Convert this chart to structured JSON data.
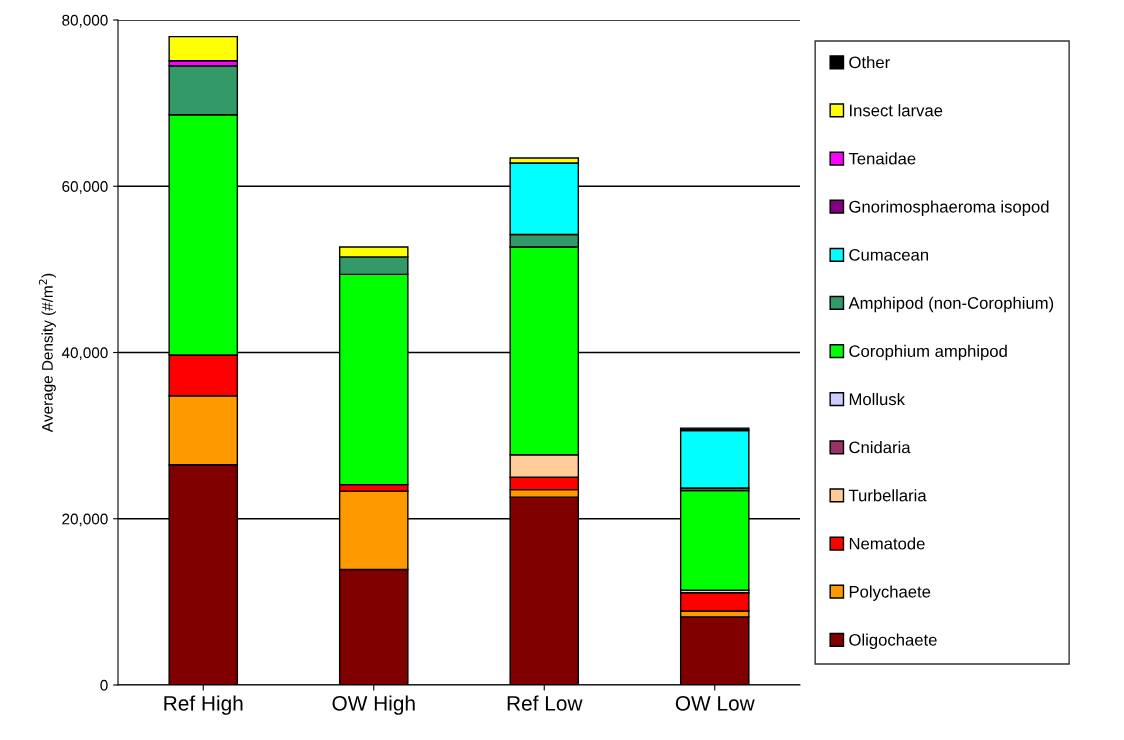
{
  "chart_data": {
    "type": "bar",
    "stacked": true,
    "ylabel": "Average Density (#/m$^{2}$)",
    "categories": [
      "Ref High",
      "OW High",
      "Ref Low",
      "OW Low"
    ],
    "ylim": [
      0,
      80000
    ],
    "yticks": [
      {
        "value": 0,
        "label": "0"
      },
      {
        "value": 20000,
        "label": "20,000"
      },
      {
        "value": 40000,
        "label": "40,000"
      },
      {
        "value": 60000,
        "label": "60,000"
      },
      {
        "value": 80000,
        "label": "80,000"
      }
    ],
    "grid": "y",
    "legend": "right",
    "series": [
      {
        "name": "Oligochaete",
        "color": "#800000",
        "values": [
          26500,
          13900,
          22600,
          8200
        ]
      },
      {
        "name": "Polychaete",
        "color": "#ff9900",
        "values": [
          8300,
          9400,
          900,
          700
        ]
      },
      {
        "name": "Nematode",
        "color": "#ff0000",
        "values": [
          4900,
          800,
          1500,
          2200
        ]
      },
      {
        "name": "Turbellaria",
        "color": "#ffcc99",
        "values": [
          0,
          0,
          2700,
          300
        ]
      },
      {
        "name": "Cnidaria",
        "color": "#993366",
        "values": [
          0,
          0,
          0,
          0
        ]
      },
      {
        "name": "Mollusk",
        "color": "#ccccff",
        "values": [
          0,
          0,
          0,
          0
        ]
      },
      {
        "name": "Corophium amphipod",
        "color": "#00ff00",
        "values": [
          28900,
          25300,
          25000,
          12000
        ]
      },
      {
        "name": "Amphipod (non-Corophium)",
        "color": "#339966",
        "values": [
          5900,
          2100,
          1500,
          300
        ]
      },
      {
        "name": "Cumacean",
        "color": "#00ffff",
        "values": [
          0,
          0,
          8600,
          6900
        ]
      },
      {
        "name": "Gnorimosphaeroma isopod",
        "color": "#800080",
        "values": [
          0,
          0,
          0,
          0
        ]
      },
      {
        "name": "Tenaidae",
        "color": "#ff00ff",
        "values": [
          600,
          0,
          0,
          0
        ]
      },
      {
        "name": "Insect larvae",
        "color": "#ffff00",
        "values": [
          2900,
          1200,
          600,
          0
        ]
      },
      {
        "name": "Other",
        "color": "#000000",
        "values": [
          0,
          0,
          0,
          300
        ]
      }
    ]
  }
}
